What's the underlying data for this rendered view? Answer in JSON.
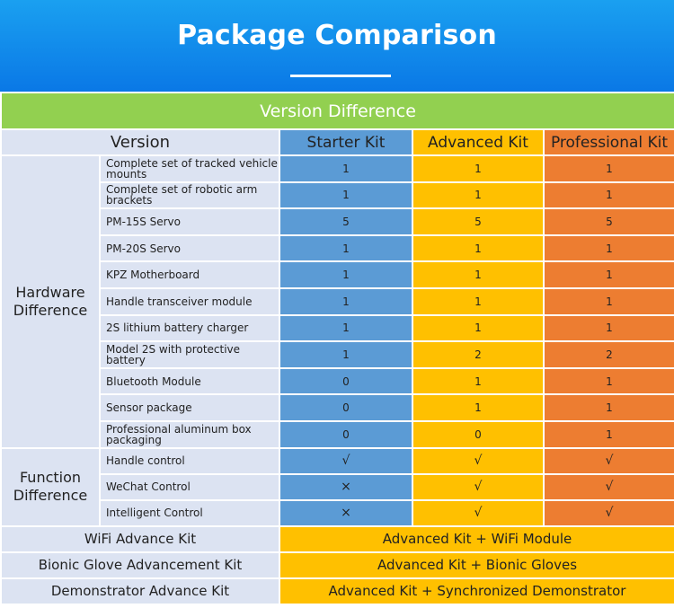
{
  "header": {
    "title": "Package Comparison"
  },
  "table": {
    "section_title": "Version Difference",
    "version_label": "Version",
    "columns": [
      "Starter Kit",
      "Advanced Kit",
      "Professional Kit"
    ],
    "hardware": {
      "label": "Hardware Difference",
      "rows": [
        {
          "item": "Complete set of tracked vehicle mounts",
          "starter": "1",
          "advanced": "1",
          "professional": "1"
        },
        {
          "item": "Complete set of robotic arm brackets",
          "starter": "1",
          "advanced": "1",
          "professional": "1"
        },
        {
          "item": "PM-15S Servo",
          "starter": "5",
          "advanced": "5",
          "professional": "5"
        },
        {
          "item": "PM-20S Servo",
          "starter": "1",
          "advanced": "1",
          "professional": "1"
        },
        {
          "item": "KPZ Motherboard",
          "starter": "1",
          "advanced": "1",
          "professional": "1"
        },
        {
          "item": "Handle transceiver module",
          "starter": "1",
          "advanced": "1",
          "professional": "1"
        },
        {
          "item": "2S lithium battery charger",
          "starter": "1",
          "advanced": "1",
          "professional": "1"
        },
        {
          "item": "Model 2S with protective battery",
          "starter": "1",
          "advanced": "2",
          "professional": "2"
        },
        {
          "item": "Bluetooth Module",
          "starter": "0",
          "advanced": "1",
          "professional": "1"
        },
        {
          "item": "Sensor package",
          "starter": "0",
          "advanced": "1",
          "professional": "1"
        },
        {
          "item": "Professional aluminum box packaging",
          "starter": "0",
          "advanced": "0",
          "professional": "1"
        }
      ]
    },
    "function": {
      "label": "Function Difference",
      "rows": [
        {
          "item": "Handle control",
          "starter": "√",
          "advanced": "√",
          "professional": "√"
        },
        {
          "item": "WeChat Control",
          "starter": "×",
          "advanced": "√",
          "professional": "√"
        },
        {
          "item": "Intelligent Control",
          "starter": "×",
          "advanced": "√",
          "professional": "√"
        }
      ]
    },
    "kits": [
      {
        "label": "WiFi Advance Kit",
        "value": "Advanced Kit + WiFi Module"
      },
      {
        "label": "Bionic Glove Advancement Kit",
        "value": "Advanced Kit + Bionic Gloves"
      },
      {
        "label": "Demonstrator Advance Kit",
        "value": "Advanced Kit + Synchronized Demonstrator"
      }
    ]
  }
}
